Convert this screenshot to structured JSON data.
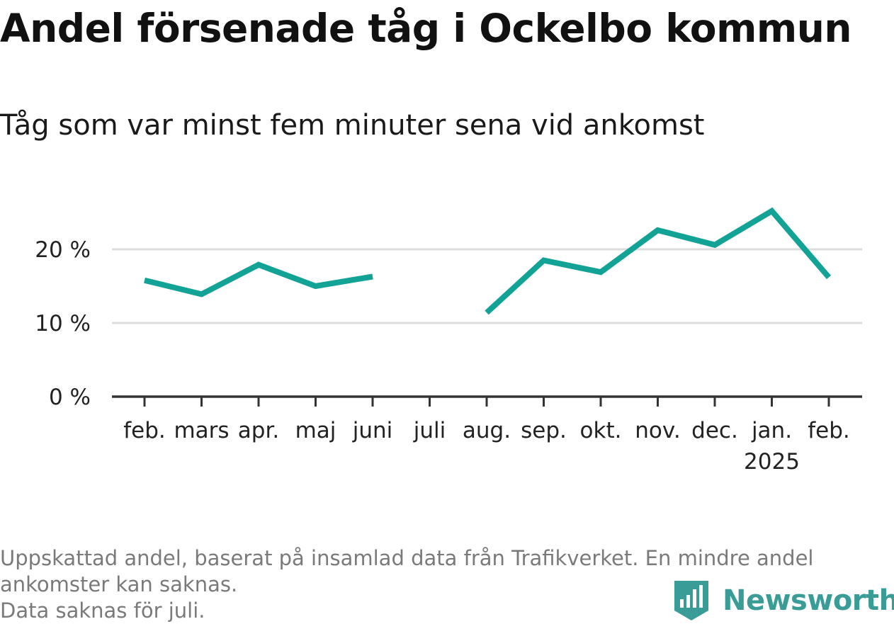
{
  "title": "Andel försenade tåg i Ockelbo kommun",
  "subtitle": "Tåg som var minst fem minuter sena vid ankomst",
  "footnote": {
    "line1": "Uppskattad andel, baserat på insamlad data från Trafikverket. En mindre andel",
    "line2": "ankomster kan saknas.",
    "line3": "Data saknas för juli."
  },
  "brand": {
    "name": "Newsworthy",
    "icon": "newsworthy-logo-icon",
    "color": "#3a9c96"
  },
  "chart_data": {
    "type": "line",
    "x": [
      "feb.",
      "mars",
      "apr.",
      "maj",
      "juni",
      "juli",
      "aug.",
      "sep.",
      "okt.",
      "nov.",
      "dec.",
      "jan.",
      "feb."
    ],
    "x_sublabels": [
      "",
      "",
      "",
      "",
      "",
      "",
      "",
      "",
      "",
      "",
      "",
      "2025",
      ""
    ],
    "series": [
      {
        "values": [
          15.8,
          13.9,
          17.9,
          15.0,
          16.3,
          null,
          11.4,
          18.5,
          16.9,
          22.6,
          20.6,
          25.2,
          16.2
        ],
        "color": "#13a296"
      }
    ],
    "ylim": [
      0,
      30
    ],
    "yticks": [
      {
        "value": 0,
        "label": "0 %"
      },
      {
        "value": 10,
        "label": "10 %"
      },
      {
        "value": 20,
        "label": "20 %"
      }
    ],
    "grid": true,
    "gridColor": "#dcdcdc",
    "axisColor": "#333333",
    "xlabel": "",
    "ylabel": ""
  }
}
